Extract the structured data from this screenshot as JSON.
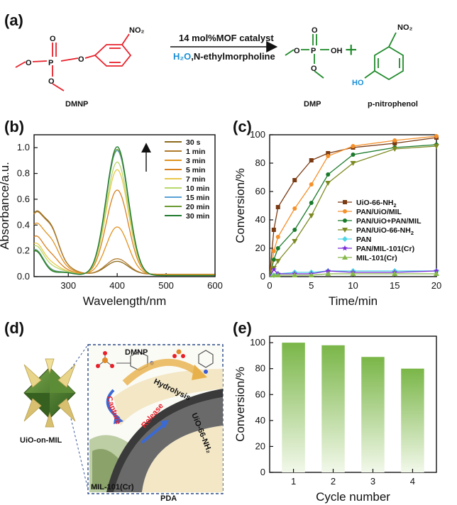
{
  "panels": {
    "a": "(a)",
    "b": "(b)",
    "c": "(c)",
    "d": "(d)",
    "e": "(e)"
  },
  "reaction": {
    "reactant": "DMNP",
    "condition_top": "14 mol%MOF catalyst",
    "condition_water": "H₂O",
    "condition_rest": ",N-ethylmorpholine",
    "product1": "DMP",
    "product2": "p-nitrophenol",
    "plus": "+",
    "no2": "NO₂",
    "oh": "OH",
    "ho": "HO",
    "p": "P",
    "o": "O",
    "colors": {
      "reactant": "#e8202a",
      "product": "#1f8a2a",
      "water": "#1a8fd6"
    }
  },
  "schematic": {
    "label_uio_on_mil": "UiO-on-MIL",
    "label_dmnp": "DMNP",
    "label_hydrolysis": "Hydrolysis",
    "label_capture": "Capture",
    "label_release": "Release",
    "label_uio66": "UiO-66-NH₂",
    "label_mil": "MIL-101(Cr)",
    "label_pda": "PDA"
  },
  "chart_data": [
    {
      "id": "b",
      "type": "line",
      "xlabel": "Wavelength/nm",
      "ylabel": "Absorbance/a.u.",
      "xlim": [
        230,
        600
      ],
      "ylim": [
        0,
        1.1
      ],
      "xticks": [
        300,
        400,
        500,
        600
      ],
      "yticks": [
        0.0,
        0.2,
        0.4,
        0.6,
        0.8,
        1.0
      ],
      "legend_position": "top-right",
      "series": [
        {
          "name": "30 s",
          "color": "#8c6a1c",
          "peak400": 0.1
        },
        {
          "name": "1 min",
          "color": "#b07a2a",
          "peak400": 0.12
        },
        {
          "name": "3 min",
          "color": "#e0921f",
          "peak400": 0.37
        },
        {
          "name": "5 min",
          "color": "#d87f1e",
          "peak400": 0.66
        },
        {
          "name": "7 min",
          "color": "#e8c84a",
          "peak400": 0.82
        },
        {
          "name": "10 min",
          "color": "#b8d86a",
          "peak400": 0.88
        },
        {
          "name": "15 min",
          "color": "#5aa0d6",
          "peak400": 0.97
        },
        {
          "name": "20 min",
          "color": "#6a9a32",
          "peak400": 0.98
        },
        {
          "name": "30 min",
          "color": "#1f7a2e",
          "peak400": 1.0
        }
      ]
    },
    {
      "id": "c",
      "type": "line",
      "xlabel": "Time/min",
      "ylabel": "Conversion/%",
      "xlim": [
        0,
        20
      ],
      "ylim": [
        0,
        100
      ],
      "xticks": [
        0,
        5,
        10,
        15,
        20
      ],
      "yticks": [
        0,
        20,
        40,
        60,
        80,
        100
      ],
      "legend_position": "center-right",
      "x": [
        0,
        0.5,
        1,
        3,
        5,
        7,
        10,
        15,
        20
      ],
      "series": [
        {
          "name": "UiO-66-NH₂",
          "color": "#7a3a12",
          "marker": "square",
          "values": [
            0,
            33,
            49,
            68,
            82,
            87,
            91,
            94,
            98
          ]
        },
        {
          "name": "PAN/UiO/MIL",
          "color": "#f5902a",
          "marker": "circle",
          "values": [
            0,
            18,
            28,
            48,
            65,
            85,
            92,
            96,
            99
          ]
        },
        {
          "name": "PAN/UiO+PAN/MIL",
          "color": "#1a7a2a",
          "marker": "circle",
          "values": [
            0,
            12,
            20,
            33,
            52,
            72,
            86,
            91,
            93
          ]
        },
        {
          "name": "PAN/UiO-66-NH₂",
          "color": "#7d8a22",
          "marker": "triangle-down",
          "values": [
            0,
            6,
            11,
            25,
            43,
            66,
            80,
            90,
            92
          ]
        },
        {
          "name": "PAN",
          "color": "#4fd6e6",
          "marker": "diamond",
          "values": [
            0,
            1,
            2,
            3,
            3,
            4,
            4,
            4,
            4
          ]
        },
        {
          "name": "PAN/MIL-101(Cr)",
          "color": "#7a2ad6",
          "marker": "star",
          "values": [
            0,
            5,
            2,
            2,
            2,
            4,
            3,
            3,
            4
          ]
        },
        {
          "name": "MIL-101(Cr)",
          "color": "#86b84a",
          "marker": "triangle",
          "values": [
            0,
            1,
            1,
            1,
            1,
            2,
            2,
            2,
            2
          ]
        }
      ]
    },
    {
      "id": "e",
      "type": "bar",
      "xlabel": "Cycle number",
      "ylabel": "Conversion/%",
      "ylim": [
        0,
        105
      ],
      "yticks": [
        0,
        20,
        40,
        60,
        80,
        100
      ],
      "categories": [
        "1",
        "2",
        "3",
        "4"
      ],
      "values": [
        100,
        98,
        89,
        80
      ],
      "color": "#7ab648"
    }
  ]
}
